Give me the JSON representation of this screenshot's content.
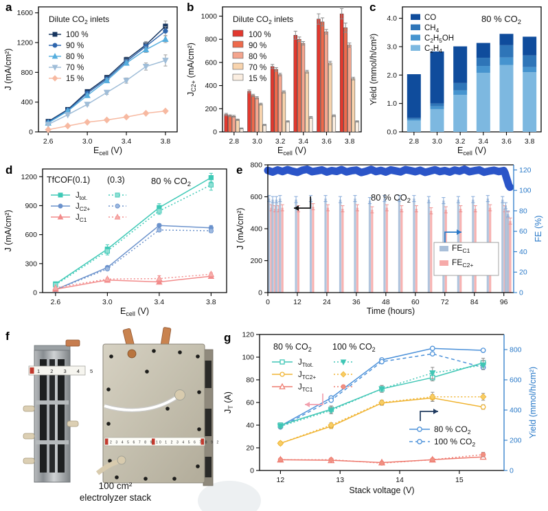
{
  "panels": {
    "a": {
      "label": "a"
    },
    "b": {
      "label": "b"
    },
    "c": {
      "label": "c"
    },
    "d": {
      "label": "d"
    },
    "e": {
      "label": "e"
    },
    "f": {
      "label": "f"
    },
    "g": {
      "label": "g"
    }
  },
  "photo": {
    "caption_line1": "100 cm²",
    "caption_line2": "electrolyzer stack",
    "ruler_left": "1 2 3 4 5 6",
    "ruler_right": "2 3 4 5 6 7 8 9 10 1 2 3 4 5 6 7 8 9 20"
  },
  "chart_data": [
    {
      "panel": "a",
      "type": "line",
      "xlabel": "E_{cell} (V)",
      "ylabel": "J (mA/cm²)",
      "legend_title": "Dilute CO_{2} inlets",
      "x": [
        2.6,
        2.8,
        3.0,
        3.2,
        3.4,
        3.6,
        3.8
      ],
      "xlim": [
        2.5,
        3.92
      ],
      "xticks": [
        2.6,
        3.0,
        3.4,
        3.8
      ],
      "xfmt": "1dp",
      "ylim": [
        0,
        1680
      ],
      "yticks": [
        0,
        400,
        800,
        1200,
        1600
      ],
      "series": [
        {
          "name": "100 %",
          "color": "#16355f",
          "marker": "square",
          "values": [
            140,
            300,
            540,
            730,
            970,
            1170,
            1420
          ],
          "err": [
            12,
            15,
            25,
            30,
            35,
            45,
            70
          ]
        },
        {
          "name": "90 %",
          "color": "#2f66ad",
          "marker": "circle",
          "values": [
            130,
            290,
            520,
            710,
            945,
            1150,
            1355
          ],
          "err": [
            10,
            15,
            20,
            28,
            32,
            40,
            60
          ]
        },
        {
          "name": "80 %",
          "color": "#56aede",
          "marker": "triangle",
          "values": [
            120,
            280,
            490,
            690,
            925,
            1105,
            1245
          ],
          "err": [
            10,
            12,
            20,
            25,
            30,
            38,
            45
          ]
        },
        {
          "name": "70 %",
          "color": "#9fbdd8",
          "marker": "triangle-down",
          "values": [
            100,
            230,
            370,
            530,
            690,
            878,
            960
          ],
          "err": [
            8,
            12,
            18,
            25,
            35,
            48,
            75
          ]
        },
        {
          "name": "15 %",
          "color": "#f7b9a1",
          "marker": "diamond",
          "values": [
            30,
            80,
            130,
            160,
            200,
            250,
            280
          ],
          "err": [
            5,
            6,
            8,
            8,
            10,
            10,
            12
          ]
        }
      ]
    },
    {
      "panel": "b",
      "type": "grouped-bar",
      "xlabel": "E_{cell} (V)",
      "ylabel": "J_{C2+} (mA/cm²)",
      "legend_title": "Dilute CO_{2} inlets",
      "categories": [
        "2.8",
        "3.0",
        "3.2",
        "3.4",
        "3.6",
        "3.8"
      ],
      "ylim": [
        0,
        1080
      ],
      "yticks": [
        0,
        200,
        400,
        600,
        800,
        1000
      ],
      "series": [
        {
          "name": "100 %",
          "color": "#e2382e",
          "values": [
            150,
            350,
            565,
            835,
            975,
            1020
          ],
          "err": [
            10,
            12,
            18,
            35,
            45,
            45
          ]
        },
        {
          "name": "90 %",
          "color": "#ee6a4c",
          "values": [
            140,
            315,
            540,
            800,
            950,
            900
          ],
          "err": [
            8,
            10,
            15,
            20,
            35,
            40
          ]
        },
        {
          "name": "80 %",
          "color": "#f4a58e",
          "values": [
            135,
            295,
            495,
            765,
            865,
            750
          ],
          "err": [
            8,
            10,
            12,
            15,
            20,
            18
          ]
        },
        {
          "name": "70 %",
          "color": "#f8d4ae",
          "values": [
            105,
            240,
            345,
            520,
            595,
            460
          ],
          "err": [
            6,
            8,
            10,
            12,
            15,
            12
          ]
        },
        {
          "name": "15 %",
          "color": "#fbeee1",
          "values": [
            30,
            60,
            90,
            125,
            140,
            90
          ],
          "err": [
            4,
            5,
            6,
            8,
            8,
            6
          ]
        }
      ]
    },
    {
      "panel": "c",
      "type": "stacked-bar",
      "xlabel": "E_{cell} (V)",
      "ylabel": "Yield (mmol/h/cm²)",
      "annotation": "80 % CO_{2}",
      "categories": [
        "2.8",
        "3.0",
        "3.2",
        "3.4",
        "3.6",
        "3.8"
      ],
      "ylim": [
        0,
        4.4
      ],
      "yticks": [
        0,
        1,
        2,
        3,
        4
      ],
      "yfmt": "1dp",
      "legend_order": [
        "CO",
        "CH_{4}",
        "C_{2}H_{5}OH",
        "C_{2}H_{4}"
      ],
      "series": [
        {
          "name": "C_{2}H_{4}",
          "color": "#7db8e0",
          "values": [
            0.4,
            0.8,
            1.3,
            2.08,
            2.35,
            2.1
          ]
        },
        {
          "name": "C_{2}H_{5}OH",
          "color": "#4694cf",
          "values": [
            0.04,
            0.1,
            0.16,
            0.24,
            0.27,
            0.18
          ]
        },
        {
          "name": "CH_{4}",
          "color": "#2e75b8",
          "values": [
            0.05,
            0.1,
            0.26,
            0.29,
            0.43,
            0.41
          ]
        },
        {
          "name": "CO",
          "color": "#0f4c9c",
          "values": [
            1.54,
            1.83,
            1.29,
            0.52,
            0.4,
            0.66
          ]
        }
      ]
    },
    {
      "panel": "d",
      "type": "line",
      "xlabel": "E_{cell} (V)",
      "ylabel": "J (mA/cm²)",
      "annotation": "80 % CO_{2}",
      "legend_headers": [
        "TfCOF(0.1)",
        "(0.3)"
      ],
      "x": [
        2.6,
        3.0,
        3.4,
        3.8
      ],
      "xlim": [
        2.5,
        3.92
      ],
      "xticks": [
        2.6,
        3.0,
        3.4,
        3.8
      ],
      "xfmt": "1dp",
      "ylim": [
        0,
        1280
      ],
      "yticks": [
        0,
        300,
        600,
        900,
        1200
      ],
      "series": [
        {
          "name": "J_{tot.}",
          "group": "0.1",
          "color": "#3ec9b6",
          "marker": "square",
          "values": [
            90,
            450,
            880,
            1190
          ],
          "err": [
            18,
            45,
            40,
            45
          ]
        },
        {
          "name": "J_{tot.}",
          "group": "0.3",
          "color": "#8fdfd4",
          "stroke": "#3ec9b6",
          "dash": true,
          "marker": "square",
          "values": [
            80,
            430,
            845,
            1115
          ],
          "err": [
            15,
            40,
            35,
            55
          ]
        },
        {
          "name": "J_{C2+}",
          "group": "0.1",
          "color": "#6b92cc",
          "marker": "circle",
          "values": [
            30,
            260,
            695,
            670
          ],
          "err": [
            8,
            15,
            18,
            25
          ]
        },
        {
          "name": "J_{C2+}",
          "group": "0.3",
          "color": "#9db9e0",
          "stroke": "#6b92cc",
          "dash": true,
          "marker": "circle",
          "values": [
            28,
            245,
            648,
            640
          ],
          "err": [
            6,
            12,
            15,
            20
          ]
        },
        {
          "name": "J_{C1}",
          "group": "0.1",
          "color": "#f28b8b",
          "marker": "triangle",
          "values": [
            35,
            130,
            110,
            170
          ],
          "err": [
            6,
            10,
            12,
            18
          ]
        },
        {
          "name": "J_{C1}",
          "group": "0.3",
          "color": "#f6b0ac",
          "stroke": "#f28b8b",
          "dash": true,
          "marker": "triangle",
          "values": [
            50,
            140,
            145,
            190
          ],
          "err": [
            6,
            10,
            30,
            15
          ]
        }
      ]
    },
    {
      "panel": "e",
      "type": "stability",
      "xlabel": "Time (hours)",
      "ylabel_left": "J (mA/cm²)",
      "ylabel_right": "FE (%)",
      "annotation": "80 % CO_{2}",
      "xlim": [
        0,
        100
      ],
      "xticks": [
        0,
        12,
        24,
        36,
        48,
        60,
        72,
        84,
        96
      ],
      "ylim_left": [
        0,
        800
      ],
      "yticks_left": [
        0,
        200,
        400,
        600,
        800
      ],
      "ylim_right": [
        0,
        125
      ],
      "yticks_right": [
        0,
        20,
        40,
        60,
        80,
        100,
        120
      ],
      "right_axis_color": "#2979c8",
      "band": {
        "color": "#2b55c8",
        "t": [
          0,
          2,
          4,
          6,
          8,
          10,
          12,
          14,
          16,
          18,
          20,
          22,
          24,
          26,
          28,
          30,
          32,
          34,
          36,
          38,
          40,
          42,
          44,
          46,
          48,
          50,
          52,
          54,
          56,
          58,
          60,
          62,
          64,
          66,
          68,
          70,
          72,
          74,
          76,
          78,
          80,
          82,
          84,
          86,
          88,
          90,
          92,
          94,
          96,
          96.5,
          97,
          97.5,
          98,
          98.5
        ],
        "j": [
          765,
          755,
          768,
          758,
          770,
          760,
          753,
          766,
          772,
          757,
          762,
          768,
          755,
          764,
          759,
          770,
          756,
          763,
          767,
          752,
          760,
          771,
          758,
          765,
          755,
          768,
          762,
          756,
          770,
          764,
          757,
          766,
          753,
          761,
          769,
          758,
          764,
          755,
          767,
          760,
          772,
          757,
          763,
          768,
          754,
          761,
          766,
          758,
          764,
          748,
          722,
          698,
          672,
          660
        ]
      },
      "bars": {
        "t": [
          1,
          2.5,
          4,
          5.5,
          12,
          18,
          24,
          30,
          36,
          42,
          48,
          54,
          60,
          66,
          72,
          78,
          84,
          90,
          96,
          97.3,
          98.2
        ],
        "fe_c1": {
          "label": "FE_{C1}",
          "color": "#a9bfd9",
          "err_color": "#84a9d9",
          "values": [
            92,
            91,
            91,
            92,
            91,
            92,
            92,
            91,
            92,
            90,
            92,
            92,
            92,
            91,
            90,
            91,
            91,
            92,
            91,
            85,
            77
          ],
          "err": 3
        },
        "fe_c2": {
          "label": "FE_{C2+}",
          "color": "#f6aaa9",
          "err_color": "#ee8f8e",
          "values": [
            83,
            82,
            82,
            83,
            82,
            84,
            83,
            82,
            83,
            81,
            83,
            82,
            82,
            80,
            81,
            82,
            82,
            83,
            82,
            76,
            70
          ],
          "err": 3
        }
      }
    },
    {
      "panel": "g",
      "type": "dual-line",
      "xlabel": "Stack voltage (V)",
      "ylabel_left": "J_{T} (A)",
      "ylabel_right": "Yield (mmol/h/cm²)",
      "legend_headers": [
        "80 % CO_{2}",
        "100 % CO_{2}"
      ],
      "x": [
        12,
        12.85,
        13.7,
        14.55,
        15.4
      ],
      "xlim": [
        11.65,
        15.75
      ],
      "xticks": [
        12,
        13,
        14,
        15
      ],
      "ylim_left": [
        0,
        120
      ],
      "yticks_left": [
        0,
        20,
        40,
        60,
        80,
        100,
        120
      ],
      "ylim_right": [
        0,
        900
      ],
      "yticks_right": [
        0,
        200,
        400,
        600,
        800
      ],
      "right_axis_color": "#2979c8",
      "series_left": [
        {
          "name": "J_{Ttot.}",
          "color": "#3fc6b5",
          "marker": "square",
          "open": true,
          "values": [
            40,
            54,
            72,
            82,
            95
          ],
          "err": [
            2,
            3,
            3,
            3,
            4
          ]
        },
        {
          "name": "J_{Ttot.}",
          "color": "#3fc6b5",
          "marker": "triangle-down",
          "dash": true,
          "values": [
            39,
            53,
            72,
            86,
            93
          ],
          "err": [
            2,
            3,
            3,
            5,
            4
          ]
        },
        {
          "name": "J_{TC2+}",
          "color": "#f0b432",
          "marker": "circle",
          "open": true,
          "values": [
            24,
            39,
            59.5,
            64,
            56
          ],
          "err": [
            1,
            2,
            2,
            3,
            2
          ]
        },
        {
          "name": "J_{TC2+}",
          "color": "#f0b432",
          "fill": "#f7cd66",
          "marker": "diamond",
          "dash": true,
          "values": [
            24,
            40,
            60,
            65,
            65
          ],
          "err": [
            1,
            2,
            2,
            4,
            3
          ]
        },
        {
          "name": "J_{TC1}",
          "color": "#ee7a6f",
          "marker": "triangle",
          "open": true,
          "values": [
            9.5,
            9,
            7,
            9.5,
            12
          ],
          "err": [
            1,
            1,
            1,
            1,
            2
          ]
        },
        {
          "name": "J_{TC1}",
          "color": "#ee7a6f",
          "fill": "#f09182",
          "marker": "circle",
          "dash": true,
          "values": [
            9.5,
            9.5,
            6.5,
            9.5,
            14
          ],
          "err": [
            1,
            1,
            1,
            1,
            2
          ]
        }
      ],
      "series_right": [
        {
          "name": "80 % CO_{2}",
          "color": "#4a90d9",
          "marker": "circle",
          "open": true,
          "values": [
            295,
            480,
            732,
            808,
            795
          ]
        },
        {
          "name": "100 % CO_{2}",
          "color": "#4a90d9",
          "marker": "circle",
          "open": true,
          "dash": true,
          "values": [
            288,
            465,
            720,
            772,
            682
          ]
        }
      ]
    }
  ]
}
